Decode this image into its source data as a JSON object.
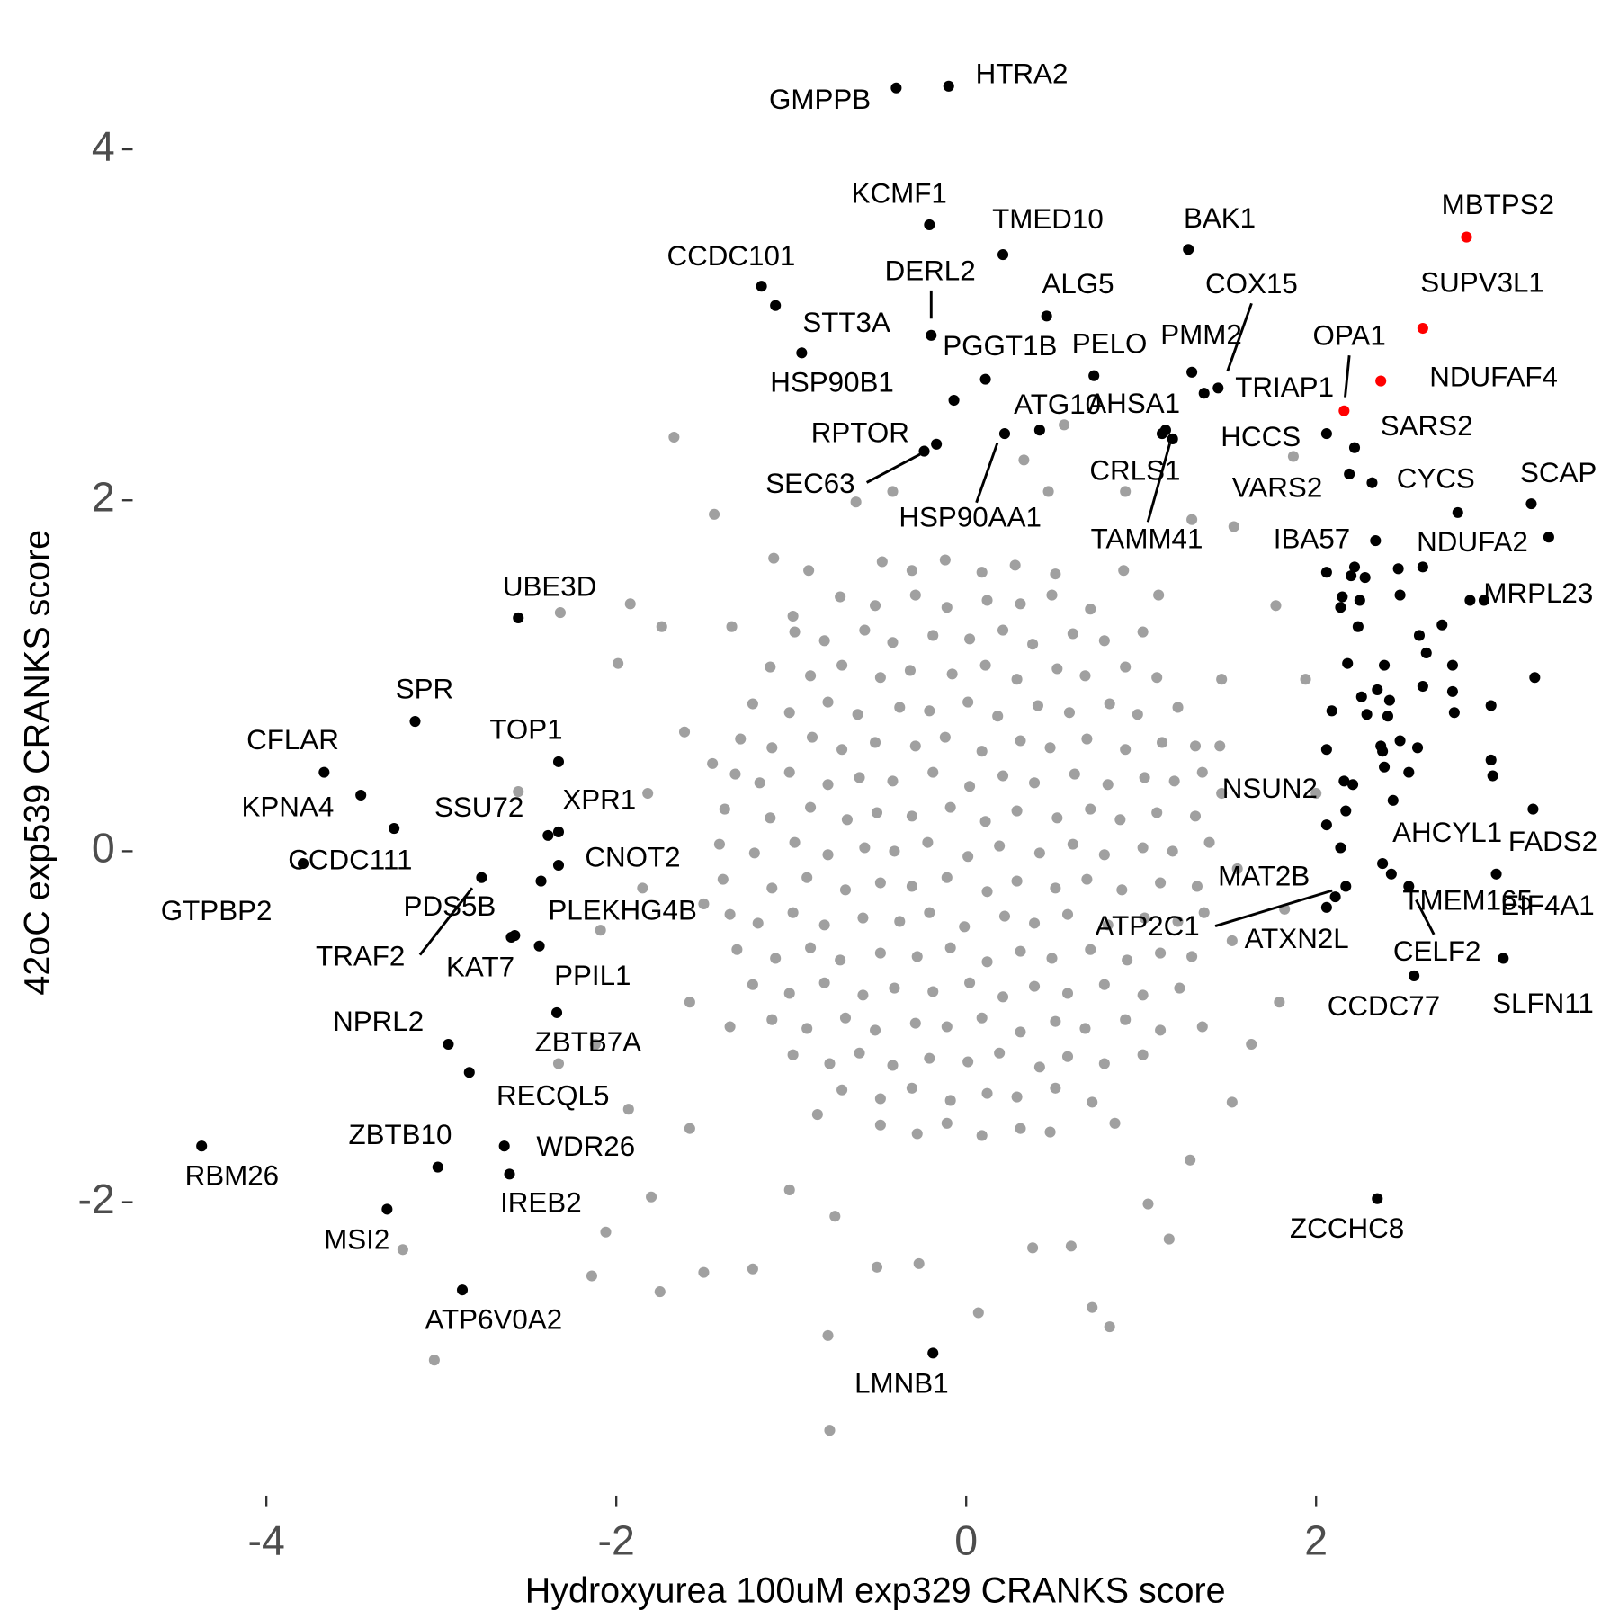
{
  "chart_data": {
    "type": "scatter",
    "xlabel": "Hydroxyurea 100uM exp329 CRANKS score",
    "ylabel": "42oC exp539 CRANKS score",
    "xlim": [
      -4.75,
      3.67
    ],
    "ylim": [
      -3.48,
      4.61
    ],
    "xticks": [
      -4,
      -2,
      0,
      2
    ],
    "yticks": [
      -2,
      0,
      2,
      4
    ],
    "series": [
      {
        "color": "#a0a0a0",
        "x": [
          -0.48,
          -0.31,
          -0.12,
          0.09,
          0.28,
          0.51,
          -0.72,
          -0.52,
          -0.29,
          -0.11,
          0.12,
          0.31,
          0.49,
          0.71,
          -0.98,
          -0.81,
          -0.58,
          -0.42,
          -0.19,
          0.02,
          0.21,
          0.38,
          0.61,
          0.79,
          1.01,
          -1.12,
          -0.89,
          -0.71,
          -0.49,
          -0.32,
          -0.08,
          0.11,
          0.29,
          0.52,
          0.68,
          0.91,
          1.09,
          -1.22,
          -1.01,
          -0.79,
          -0.62,
          -0.38,
          -0.21,
          0.01,
          0.18,
          0.41,
          0.59,
          0.82,
          0.98,
          1.21,
          -1.29,
          -1.11,
          -0.88,
          -0.71,
          -0.52,
          -0.29,
          -0.12,
          0.09,
          0.31,
          0.48,
          0.69,
          0.91,
          1.12,
          1.31,
          -1.32,
          -1.18,
          -1.01,
          -0.79,
          -0.61,
          -0.42,
          -0.19,
          0.02,
          0.21,
          0.39,
          0.62,
          0.81,
          1.02,
          1.19,
          1.35,
          -1.38,
          -1.12,
          -0.89,
          -0.68,
          -0.51,
          -0.31,
          -0.09,
          0.11,
          0.29,
          0.52,
          0.71,
          0.88,
          1.09,
          1.31,
          -1.41,
          -1.21,
          -0.98,
          -0.79,
          -0.58,
          -0.41,
          -0.22,
          0.01,
          0.19,
          0.42,
          0.61,
          0.79,
          1.01,
          1.18,
          1.39,
          -1.39,
          -1.11,
          -0.91,
          -0.69,
          -0.49,
          -0.31,
          -0.11,
          0.12,
          0.29,
          0.51,
          0.69,
          0.89,
          1.11,
          1.32,
          -1.35,
          -1.19,
          -0.99,
          -0.81,
          -0.59,
          -0.38,
          -0.21,
          -0.01,
          0.22,
          0.39,
          0.58,
          0.81,
          1.02,
          1.21,
          1.36,
          -1.31,
          -1.09,
          -0.89,
          -0.72,
          -0.49,
          -0.28,
          -0.09,
          0.12,
          0.31,
          0.49,
          0.71,
          0.92,
          1.11,
          1.29,
          -1.22,
          -1.01,
          -0.81,
          -0.59,
          -0.41,
          -0.19,
          0.02,
          0.21,
          0.39,
          0.58,
          0.79,
          1.01,
          1.22,
          -1.11,
          -0.91,
          -0.69,
          -0.52,
          -0.29,
          -0.11,
          0.09,
          0.31,
          0.51,
          0.68,
          0.91,
          1.11,
          -0.99,
          -0.78,
          -0.61,
          -0.42,
          -0.21,
          0.01,
          0.19,
          0.42,
          0.58,
          0.79,
          1.01,
          -0.71,
          -0.49,
          -0.31,
          -0.09,
          0.12,
          0.29,
          0.51,
          0.72,
          -0.49,
          -0.28,
          -0.11,
          0.09,
          0.31,
          0.48,
          -1.67,
          -1.44,
          -1.92,
          -2.32,
          -1.74,
          -1.99,
          -2.56,
          -3.22,
          -3.04,
          -0.78,
          -0.79,
          0.07,
          0.72,
          0.82,
          1.79,
          1.52,
          1.53,
          1.87,
          0.56,
          0.33,
          1.16,
          1.04,
          -1.5,
          -1.75,
          -2.14,
          -2.06,
          -1.8,
          -1.22,
          0.38,
          0.6,
          -0.27,
          -0.51,
          -0.75,
          -1.01,
          1.28,
          1.63,
          1.82,
          2,
          1.94,
          1.77,
          1.29,
          0.91,
          0.47,
          -0.42,
          -0.63,
          -1.1,
          -1.61,
          -1.85,
          -1.58,
          -2.12,
          -1.58,
          -1.93,
          -2.33,
          -2.09,
          -1.82,
          1.46,
          1.46,
          1.52,
          -1.34,
          -0.99,
          1.1,
          1.35,
          -1.35,
          1.45,
          -1.45,
          -1.5,
          1.55,
          0.9,
          -0.9,
          0.85,
          -0.85
        ],
        "y": [
          1.65,
          1.6,
          1.66,
          1.59,
          1.63,
          1.58,
          1.45,
          1.4,
          1.46,
          1.39,
          1.43,
          1.41,
          1.46,
          1.38,
          1.25,
          1.2,
          1.26,
          1.19,
          1.23,
          1.21,
          1.26,
          1.18,
          1.24,
          1.2,
          1.25,
          1.05,
          1.0,
          1.06,
          0.99,
          1.03,
          1.01,
          1.06,
          0.98,
          1.04,
          1.0,
          1.05,
          0.99,
          0.84,
          0.79,
          0.85,
          0.78,
          0.82,
          0.8,
          0.85,
          0.77,
          0.83,
          0.79,
          0.84,
          0.78,
          0.82,
          0.64,
          0.59,
          0.65,
          0.58,
          0.62,
          0.6,
          0.65,
          0.57,
          0.63,
          0.59,
          0.64,
          0.58,
          0.62,
          0.6,
          0.44,
          0.39,
          0.45,
          0.38,
          0.42,
          0.4,
          0.45,
          0.37,
          0.43,
          0.39,
          0.44,
          0.38,
          0.42,
          0.4,
          0.45,
          0.24,
          0.19,
          0.25,
          0.18,
          0.22,
          0.2,
          0.25,
          0.17,
          0.23,
          0.19,
          0.24,
          0.18,
          0.22,
          0.2,
          0.04,
          -0.01,
          0.05,
          -0.02,
          0.02,
          0.0,
          0.05,
          -0.03,
          0.03,
          -0.01,
          0.04,
          -0.02,
          0.02,
          0.0,
          0.05,
          -0.16,
          -0.21,
          -0.15,
          -0.22,
          -0.18,
          -0.2,
          -0.15,
          -0.23,
          -0.17,
          -0.21,
          -0.16,
          -0.22,
          -0.18,
          -0.2,
          -0.36,
          -0.41,
          -0.35,
          -0.42,
          -0.38,
          -0.4,
          -0.35,
          -0.43,
          -0.37,
          -0.41,
          -0.36,
          -0.42,
          -0.38,
          -0.4,
          -0.35,
          -0.56,
          -0.61,
          -0.55,
          -0.62,
          -0.58,
          -0.6,
          -0.55,
          -0.63,
          -0.57,
          -0.61,
          -0.56,
          -0.62,
          -0.58,
          -0.6,
          -0.76,
          -0.81,
          -0.75,
          -0.82,
          -0.78,
          -0.8,
          -0.75,
          -0.83,
          -0.77,
          -0.81,
          -0.76,
          -0.82,
          -0.78,
          -0.96,
          -1.01,
          -0.95,
          -1.02,
          -0.98,
          -1.0,
          -0.95,
          -1.03,
          -0.97,
          -1.01,
          -0.96,
          -1.02,
          -1.16,
          -1.21,
          -1.15,
          -1.22,
          -1.18,
          -1.2,
          -1.15,
          -1.23,
          -1.17,
          -1.21,
          -1.16,
          -1.36,
          -1.41,
          -1.35,
          -1.42,
          -1.38,
          -1.4,
          -1.35,
          -1.43,
          -1.56,
          -1.61,
          -1.55,
          -1.62,
          -1.58,
          -1.6,
          2.36,
          1.92,
          1.41,
          1.36,
          1.28,
          1.07,
          0.34,
          -2.27,
          -2.9,
          -3.3,
          -2.76,
          -2.63,
          -2.6,
          -2.71,
          -0.86,
          -1.43,
          1.85,
          2.25,
          2.43,
          2.23,
          -2.21,
          -2.01,
          -2.4,
          -2.51,
          -2.42,
          -2.17,
          -1.97,
          -2.38,
          -2.26,
          -2.25,
          -2.35,
          -2.37,
          -2.08,
          -1.93,
          -1.76,
          -1.1,
          -0.33,
          0.33,
          0.98,
          1.4,
          1.89,
          2.05,
          2.05,
          2.05,
          1.99,
          1.67,
          0.68,
          -0.21,
          -0.86,
          -1.1,
          -1.58,
          -1.47,
          -1.21,
          -0.45,
          0.33,
          0.98,
          0.33,
          -0.51,
          1.28,
          1.34,
          1.46,
          -1,
          -1,
          0.6,
          0.5,
          -0.3,
          -0.1,
          1.6,
          1.6,
          -1.55,
          -1.5
        ]
      },
      {
        "color": "#000000",
        "x": [
          -0.4,
          -0.1,
          -0.21,
          0.21,
          -1.17,
          -1.09,
          -0.2,
          0.46,
          1.27,
          1.44,
          1.36,
          1.29,
          0.73,
          0.11,
          -0.94,
          0.42,
          1.12,
          1.18,
          1.14,
          -0.17,
          -0.24,
          0.22,
          2.06,
          2.22,
          2.19,
          2.32,
          3.23,
          2.81,
          2.34,
          2.96,
          -2.56,
          -3.15,
          -3.67,
          -3.46,
          -2.39,
          -2.33,
          -3.27,
          -3.79,
          -2.33,
          -2.33,
          -2.6,
          -2.77,
          -2.43,
          -2.58,
          -2.44,
          -2.34,
          -2.96,
          -2.84,
          -3.02,
          -2.64,
          -2.61,
          -4.37,
          -3.31,
          -2.88,
          -0.19,
          2.35,
          2.16,
          2.38,
          3.24,
          2.06,
          2.17,
          2.11,
          2.43,
          3.03,
          2.53,
          2.56,
          3.07,
          2.06,
          2.14,
          2.2,
          2.28,
          2.25,
          2.47,
          2.61,
          2.48,
          2.24,
          2.59,
          2.63,
          2.72,
          2.18,
          2.39,
          2.78,
          2.26,
          2.35,
          2.42,
          2.41,
          2.29,
          2.48,
          2.58,
          2.37,
          2.61,
          2.78,
          3.0,
          3.25,
          2.79,
          2.09,
          2.06,
          2.38,
          2.39,
          2.53,
          2.44,
          2.21,
          2.17,
          3.0,
          3.01,
          2.88,
          3.33,
          -0.07,
          2.22,
          2.15,
          2.06,
          2.14
        ],
        "y": [
          4.35,
          4.36,
          3.57,
          3.4,
          3.22,
          3.11,
          2.94,
          3.05,
          3.43,
          2.64,
          2.61,
          2.73,
          2.71,
          2.69,
          2.84,
          2.4,
          2.38,
          2.35,
          2.4,
          2.32,
          2.28,
          2.38,
          2.38,
          2.3,
          2.15,
          2.1,
          1.98,
          1.93,
          1.77,
          1.43,
          1.33,
          0.74,
          0.45,
          0.32,
          0.09,
          0.11,
          0.13,
          -0.07,
          0.51,
          -0.08,
          -0.49,
          -0.15,
          -0.17,
          -0.48,
          -0.54,
          -0.92,
          -1.1,
          -1.26,
          -1.8,
          -1.68,
          -1.84,
          -1.68,
          -2.04,
          -2.5,
          -2.86,
          -1.98,
          0.4,
          -0.07,
          0.24,
          -0.32,
          -0.2,
          -0.26,
          -0.13,
          -0.13,
          -0.2,
          -0.71,
          -0.61,
          1.59,
          1.39,
          1.57,
          1.56,
          1.43,
          1.61,
          1.62,
          1.46,
          1.28,
          1.23,
          1.13,
          1.29,
          1.07,
          1.06,
          1.06,
          0.88,
          0.92,
          0.86,
          0.77,
          0.78,
          0.63,
          0.59,
          0.6,
          0.94,
          0.91,
          0.83,
          0.99,
          0.79,
          0.8,
          0.58,
          0.57,
          0.48,
          0.45,
          0.29,
          0.38,
          0.23,
          0.52,
          0.43,
          1.43,
          1.79,
          2.57,
          1.62,
          1.45,
          0.15,
          0.02
        ],
        "labels": [
          "GMPPB",
          "HTRA2",
          "KCMF1",
          "TMED10",
          "CCDC101",
          "STT3A",
          "DERL2",
          "ALG5",
          "BAK1",
          "COX15",
          "TRIAP1",
          "PMM2",
          "PELO",
          "PGGT1B",
          "HSP90B1",
          "ATG10",
          "AHSA1",
          "CRLS1",
          "TAMM41",
          "RPTOR",
          "SEC63",
          "HSP90AA1",
          "HCCS",
          "SARS2",
          "VARS2",
          "CYCS",
          "SCAP",
          "NDUFA2",
          "IBA57",
          "MRPL23",
          "UBE3D",
          "SPR",
          "CFLAR",
          "KPNA4",
          "SSU72",
          "XPR1",
          "CCDC111",
          "GTPBP2",
          "TOP1",
          "CNOT2",
          "PDS5B",
          "TRAF2",
          "PLEKHG4B",
          "KAT7",
          "PPIL1",
          "ZBTB7A",
          "NPRL2",
          "RECQL5",
          "ZBTB10",
          "WDR26",
          "IREB2",
          "RBM26",
          "MSI2",
          "ATP6V0A2",
          "LMNB1",
          "ZCCHC8",
          "NSUN2",
          "AHCYL1",
          "FADS2",
          "MAT2B",
          "ATP2C1",
          "ATXN2L",
          "TMEM165",
          "EIF4A1",
          "CELF2",
          "CCDC77",
          "SLFN11",
          null,
          null,
          null,
          null,
          null,
          null,
          null,
          null,
          null,
          null,
          null,
          null,
          null,
          null,
          null,
          null,
          null,
          null,
          null,
          null,
          null,
          null,
          null,
          null,
          null,
          null,
          null,
          null,
          null,
          null,
          null,
          null,
          null,
          null,
          null,
          null,
          null,
          null,
          null,
          null,
          null,
          null,
          null,
          null,
          null
        ]
      },
      {
        "color": "#ff0000",
        "x": [
          2.86,
          2.61,
          2.37,
          2.16
        ],
        "y": [
          3.5,
          2.98,
          2.68,
          2.51
        ],
        "labels": [
          "MBTPS2",
          "SUPV3L1",
          "NDUFAF4",
          "OPA1"
        ]
      }
    ]
  }
}
